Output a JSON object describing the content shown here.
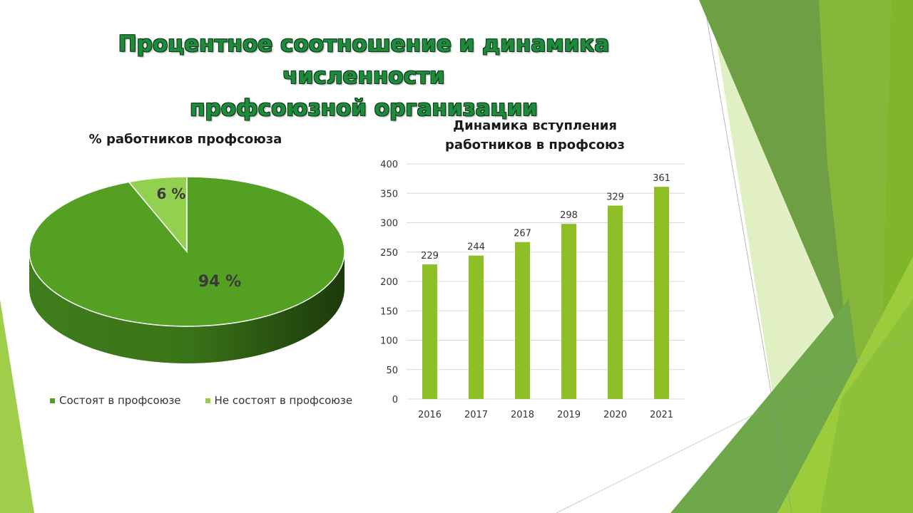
{
  "slide": {
    "title_line1": "Процентное соотношение и динамика численности",
    "title_line2": "профсоюзной организации"
  },
  "colors": {
    "pie_main": "#53a022",
    "pie_minor": "#92d050",
    "bar": "#8fbf26",
    "deco_dark": "#6a9a3e",
    "deco_light": "#a6d04a"
  },
  "chart_data": [
    {
      "type": "pie",
      "title": "% работников профсоюза",
      "categories": [
        "Состоят в профсоюзе",
        "Не состоят в профсоюзе"
      ],
      "values": [
        94,
        6
      ],
      "data_labels": [
        "94 %",
        "6 %"
      ],
      "legend_position": "bottom"
    },
    {
      "type": "bar",
      "title": "Динамика вступления работников в профсоюз",
      "title_line1": "Динамика вступления",
      "title_line2": "работников в профсоюз",
      "categories": [
        "2016",
        "2017",
        "2018",
        "2019",
        "2020",
        "2021"
      ],
      "values": [
        229,
        244,
        267,
        298,
        329,
        361
      ],
      "ylim": [
        0,
        400
      ],
      "yticks": [
        0,
        50,
        100,
        150,
        200,
        250,
        300,
        350,
        400
      ],
      "grid": true
    }
  ]
}
